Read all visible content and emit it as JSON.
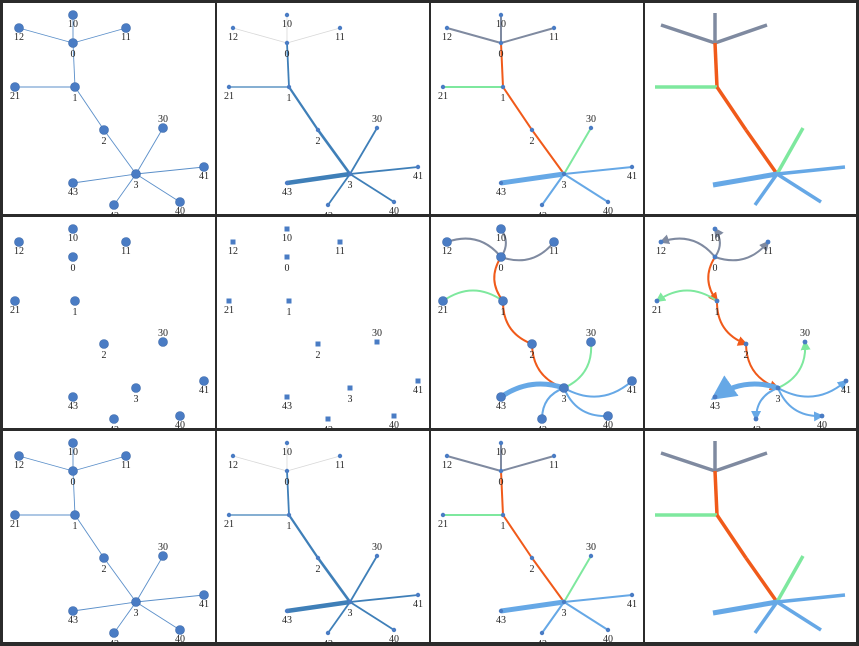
{
  "nodes": [
    {
      "id": "0",
      "label": "0"
    },
    {
      "id": "1",
      "label": "1"
    },
    {
      "id": "2",
      "label": "2"
    },
    {
      "id": "3",
      "label": "3"
    },
    {
      "id": "10",
      "label": "10"
    },
    {
      "id": "11",
      "label": "11"
    },
    {
      "id": "12",
      "label": "12"
    },
    {
      "id": "21",
      "label": "21"
    },
    {
      "id": "30",
      "label": "30"
    },
    {
      "id": "40",
      "label": "40"
    },
    {
      "id": "41",
      "label": "41"
    },
    {
      "id": "42",
      "label": "42"
    },
    {
      "id": "43",
      "label": "43"
    }
  ],
  "edges": [
    {
      "source": "0",
      "target": "10",
      "group": "gray",
      "weight": 1
    },
    {
      "source": "0",
      "target": "11",
      "group": "gray",
      "weight": 1
    },
    {
      "source": "0",
      "target": "12",
      "group": "gray",
      "weight": 1
    },
    {
      "source": "0",
      "target": "1",
      "group": "orange",
      "weight": 2
    },
    {
      "source": "1",
      "target": "21",
      "group": "green",
      "weight": 1.5
    },
    {
      "source": "1",
      "target": "2",
      "group": "orange",
      "weight": 2.5
    },
    {
      "source": "2",
      "target": "3",
      "group": "orange",
      "weight": 3
    },
    {
      "source": "3",
      "target": "30",
      "group": "green",
      "weight": 2
    },
    {
      "source": "3",
      "target": "40",
      "group": "blue",
      "weight": 2
    },
    {
      "source": "3",
      "target": "41",
      "group": "blue",
      "weight": 2
    },
    {
      "source": "3",
      "target": "42",
      "group": "blue",
      "weight": 2
    },
    {
      "source": "3",
      "target": "43",
      "group": "blue",
      "weight": 5
    }
  ],
  "group_colors": {
    "gray": "#7f8aa0",
    "orange": "#f05a1a",
    "green": "#7ee89e",
    "blue": "#66a8e6",
    "node": "#4a7cc4",
    "plain_edge": "#5b8fc9"
  },
  "panels": [
    {
      "row": 1,
      "col": 1,
      "style": "graph"
    },
    {
      "row": 1,
      "col": 2,
      "style": "weighted-edges"
    },
    {
      "row": 1,
      "col": 3,
      "style": "colored-edges"
    },
    {
      "row": 1,
      "col": 4,
      "style": "colored-edges-no-labels"
    },
    {
      "row": 2,
      "col": 1,
      "style": "nodes-only"
    },
    {
      "row": 2,
      "col": 2,
      "style": "square-nodes"
    },
    {
      "row": 2,
      "col": 3,
      "style": "curved-edges"
    },
    {
      "row": 2,
      "col": 4,
      "style": "curved-edges-arrows"
    },
    {
      "row": 3,
      "col": 1,
      "style": "graph"
    },
    {
      "row": 3,
      "col": 2,
      "style": "weighted-edges"
    },
    {
      "row": 3,
      "col": 3,
      "style": "colored-edges"
    },
    {
      "row": 3,
      "col": 4,
      "style": "colored-edges-no-labels"
    }
  ]
}
